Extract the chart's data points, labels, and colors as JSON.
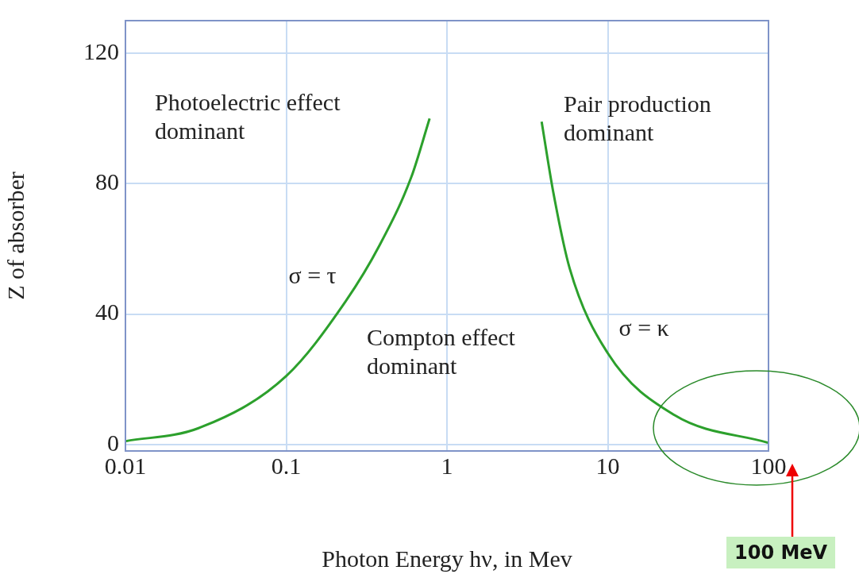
{
  "chart_data": {
    "type": "line",
    "xlabel": "Photon Energy hν, in Mev",
    "ylabel": "Z of absorber",
    "log": "x",
    "xlim": [
      0.01,
      100
    ],
    "xticks": [
      0.01,
      0.1,
      1,
      10,
      100
    ],
    "ylim": [
      -2,
      130
    ],
    "yticks": [
      0,
      40,
      80,
      120
    ],
    "grid": true,
    "legend": false,
    "marker": "none",
    "line_style": "solid",
    "series": [
      {
        "name": "σ = τ",
        "color": "#2ca02c",
        "x": [
          0.01,
          0.0285,
          0.1,
          0.235,
          0.38,
          0.6,
          0.78
        ],
        "values": [
          1,
          5,
          21,
          44,
          61,
          82,
          100
        ]
      },
      {
        "name": "σ = κ",
        "color": "#2ca02c",
        "x": [
          3.88,
          4.6,
          5.8,
          10,
          26,
          100
        ],
        "values": [
          99,
          77,
          54,
          28,
          9,
          0.5
        ]
      }
    ],
    "annotations": [
      "Photoelectric effect dominant",
      "Pair production dominant",
      "Compton effect dominant",
      "100 MeV"
    ]
  }
}
